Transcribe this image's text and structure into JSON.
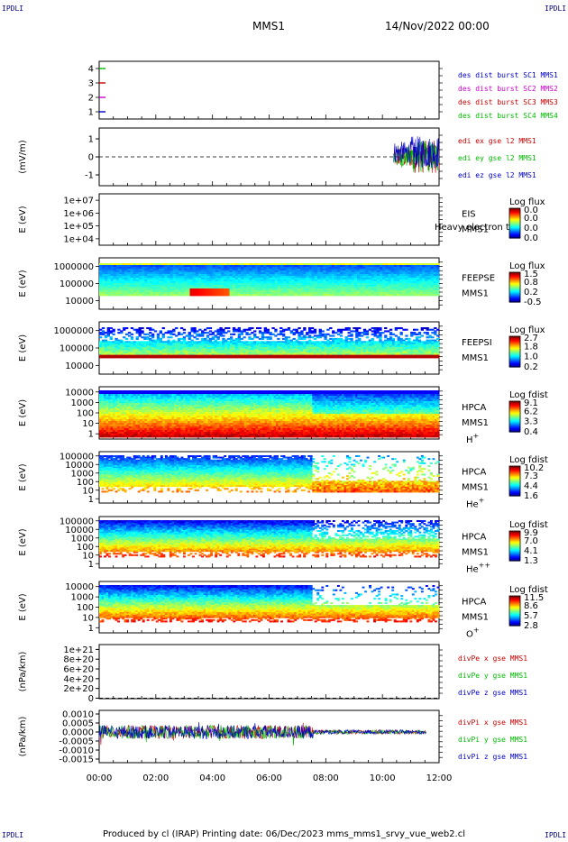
{
  "header": {
    "corner_label": "IPDLI",
    "spacecraft": "MMS1",
    "date_time": "14/Nov/2022 00:00"
  },
  "footer": {
    "text": "Produced by cl (IRAP)   Printing date: 06/Dec/2023   mms_mms1_srvy_vue_web2.cl"
  },
  "colors": {
    "mms1": "#0000cc",
    "mms2": "#cc00cc",
    "mms3": "#cc0000",
    "mms4": "#00bb00"
  },
  "time_axis": {
    "ticks": [
      "00:00",
      "02:00",
      "04:00",
      "06:00",
      "08:00",
      "10:00",
      "12:00"
    ],
    "range_hours": [
      0,
      12
    ]
  },
  "chart_data": [
    {
      "type": "line",
      "id": "burst",
      "ylim": [
        0.5,
        4.5
      ],
      "ytick_labels": [
        "1",
        "2",
        "3",
        "4"
      ],
      "legend": [
        "des dist burst SC1 MMS1",
        "des dist burst SC2 MMS2",
        "des dist burst SC3 MMS3",
        "des dist burst SC4 MMS4"
      ],
      "series": [
        {
          "name": "des dist burst SC1 MMS1",
          "y": 1
        },
        {
          "name": "des dist burst SC2 MMS2",
          "y": 2
        },
        {
          "name": "des dist burst SC3 MMS3",
          "y": 3
        },
        {
          "name": "des dist burst SC4 MMS4",
          "y": 4
        }
      ]
    },
    {
      "type": "line",
      "id": "edi",
      "ylabel": "(mV/m)",
      "ylim": [
        -1.6,
        1.6
      ],
      "ytick_labels": [
        "-1",
        "0",
        "1"
      ],
      "legend": [
        "edi ex gse l2 MMS1",
        "edi ey gse l2 MMS1",
        "edi ez gse l2 MMS1"
      ],
      "data_start_hour": 10.4,
      "dashed_zero": true
    },
    {
      "type": "heatmap",
      "id": "eis",
      "ylabel": "E (eV)",
      "ytick_labels": [
        "1e+04",
        "1e+05",
        "1e+06",
        "1e+07"
      ],
      "instrument": "EIS",
      "instrument_note": "Heavy electron to",
      "sc": "MMS1",
      "cb_title": "Log flux",
      "cb_labels": [
        "0.0",
        "0.0",
        "0.0",
        "0.0"
      ]
    },
    {
      "type": "heatmap",
      "id": "feepse",
      "ylabel": "E (eV)",
      "ytick_labels": [
        "10000",
        "100000",
        "1000000"
      ],
      "instrument": "FEEPSE",
      "sc": "MMS1",
      "cb_title": "Log flux",
      "cb_labels": [
        "1.5",
        "0.8",
        "0.2",
        "-0.5"
      ]
    },
    {
      "type": "heatmap",
      "id": "feepsi",
      "ylabel": "E (eV)",
      "ytick_labels": [
        "10000",
        "100000",
        "1000000"
      ],
      "instrument": "FEEPSI",
      "sc": "MMS1",
      "cb_title": "Log flux",
      "cb_labels": [
        "2.7",
        "1.8",
        "1.0",
        "0.2"
      ]
    },
    {
      "type": "heatmap",
      "id": "hpca_h",
      "ylabel": "E (eV)",
      "ytick_labels": [
        "1",
        "10",
        "100",
        "1000",
        "10000"
      ],
      "instrument": "HPCA",
      "sc": "MMS1",
      "species": "H",
      "charge": "+",
      "cb_title": "Log fdist",
      "cb_labels": [
        "9.1",
        "6.2",
        "3.3",
        "0.4"
      ]
    },
    {
      "type": "heatmap",
      "id": "hpca_he1",
      "ylabel": "E (eV)",
      "ytick_labels": [
        "1",
        "10",
        "100",
        "1000",
        "10000",
        "100000"
      ],
      "instrument": "HPCA",
      "sc": "MMS1",
      "species": "He",
      "charge": "+",
      "cb_title": "Log fdist",
      "cb_labels": [
        "10.2",
        "7.3",
        "4.4",
        "1.6"
      ]
    },
    {
      "type": "heatmap",
      "id": "hpca_he2",
      "ylabel": "E (eV)",
      "ytick_labels": [
        "1",
        "10",
        "100",
        "1000",
        "10000",
        "100000"
      ],
      "instrument": "HPCA",
      "sc": "MMS1",
      "species": "He",
      "charge": "++",
      "cb_title": "Log fdist",
      "cb_labels": [
        "9.9",
        "7.0",
        "4.1",
        "1.3"
      ]
    },
    {
      "type": "heatmap",
      "id": "hpca_o",
      "ylabel": "E (eV)",
      "ytick_labels": [
        "1",
        "10",
        "100",
        "1000",
        "10000"
      ],
      "instrument": "HPCA",
      "sc": "MMS1",
      "species": "O",
      "charge": "+",
      "cb_title": "Log fdist",
      "cb_labels": [
        "11.5",
        "8.6",
        "5.7",
        "2.8"
      ]
    },
    {
      "type": "line",
      "id": "divpe",
      "ylabel": "(nPa/km)",
      "ylim": [
        -1e+19,
        1.1e+21
      ],
      "ytick_labels": [
        "0",
        "2e+20",
        "4e+20",
        "6e+20",
        "8e+20",
        "1e+21"
      ],
      "legend": [
        "divPe x gse MMS1",
        "divPe y gse MMS1",
        "divPe z gse MMS1"
      ],
      "dashed_zero": true
    },
    {
      "type": "line",
      "id": "divpi",
      "ylabel": "(nPa/km)",
      "ylim": [
        -0.0017,
        0.0012
      ],
      "ytick_labels": [
        "-0.0015",
        "-0.0010",
        "-0.0005",
        "0.0000",
        "0.0005",
        "0.0010"
      ],
      "legend": [
        "divPi x gse MMS1",
        "divPi y gse MMS1",
        "divPi z gse MMS1"
      ],
      "transition_hour": 7.55
    }
  ]
}
